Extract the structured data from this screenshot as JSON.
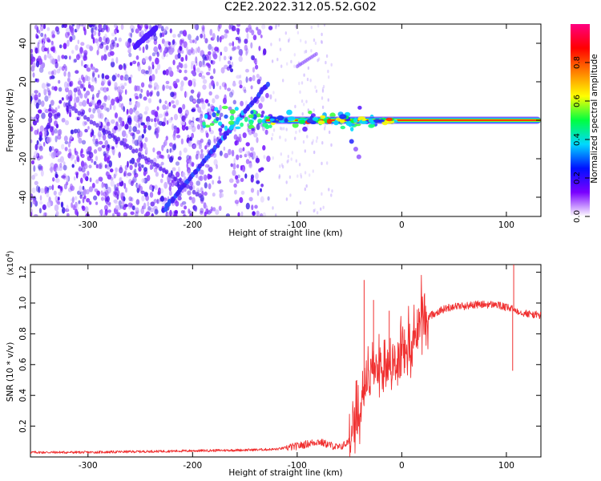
{
  "window": {
    "title": "C2E2.2022.312.05.52.G02"
  },
  "chart_data": [
    {
      "type": "heatmap",
      "xlabel": "Height of straight line (km)",
      "ylabel": "Frequency (Hz)",
      "xlim": [
        -355,
        133
      ],
      "ylim": [
        -50,
        50
      ],
      "x_ticks": [
        "-300",
        "-200",
        "-100",
        "0",
        "100"
      ],
      "y_ticks": [
        "-40",
        "-20",
        "0",
        "20",
        "40"
      ],
      "colorbar": {
        "label": "Normalized spectral amplitude",
        "range": [
          0.0,
          1.0
        ],
        "ticks": [
          "0.0",
          "0.2",
          "0.4",
          "0.6",
          "0.8"
        ],
        "colormap": [
          "#ffffff",
          "#7a00ff",
          "#0010ff",
          "#00d8ff",
          "#00ff40",
          "#ffff00",
          "#ff8000",
          "#ff0000",
          "#ff0080"
        ]
      },
      "features": [
        {
          "name": "carrier",
          "x": [
            -130,
            133
          ],
          "frequency_hz": 0,
          "amplitude": 1.0
        },
        {
          "name": "upper-diagonal",
          "x": [
            -255,
            -235
          ],
          "frequency_hz": [
            38,
            48
          ],
          "amplitude": 0.3
        },
        {
          "name": "lower-diagonal",
          "x": [
            -228,
            -128
          ],
          "frequency_hz": [
            -47,
            19
          ],
          "amplitude": 0.35
        }
      ]
    },
    {
      "type": "line",
      "xlabel": "Height of straight line (km)",
      "ylabel": "SNR (10 * v/v)",
      "y_multiplier": "(x10",
      "y_multiplier_exp": "4",
      "y_multiplier_close": ")",
      "xlim": [
        -355,
        133
      ],
      "ylim": [
        0.0,
        1.25
      ],
      "x_ticks": [
        "-300",
        "-200",
        "-100",
        "0",
        "100"
      ],
      "y_ticks": [
        "0.2",
        "0.4",
        "0.6",
        "0.8",
        "1.0",
        "1.2"
      ],
      "color": "#f03030",
      "series": [
        {
          "x": [
            -355,
            -300,
            -250,
            -200,
            -150,
            -120,
            -100,
            -80,
            -60,
            -50,
            -40,
            -30,
            -20,
            -10,
            0,
            10,
            20,
            30,
            40,
            50,
            60,
            70,
            80,
            90,
            100,
            107,
            110,
            120,
            133
          ],
          "y": [
            0.03,
            0.03,
            0.035,
            0.04,
            0.045,
            0.05,
            0.07,
            0.1,
            0.06,
            0.1,
            0.3,
            0.5,
            0.62,
            0.58,
            0.62,
            0.75,
            0.88,
            0.93,
            0.96,
            0.98,
            0.98,
            0.99,
            0.99,
            0.99,
            0.97,
            0.96,
            0.95,
            0.93,
            0.92
          ]
        }
      ],
      "spikes": [
        {
          "x": -36,
          "y": 1.15
        },
        {
          "x": -27,
          "y": 1.02
        },
        {
          "x": -12,
          "y": 0.95
        },
        {
          "x": 106,
          "y": 0.56
        },
        {
          "x": 107,
          "y": 1.26
        }
      ]
    }
  ]
}
